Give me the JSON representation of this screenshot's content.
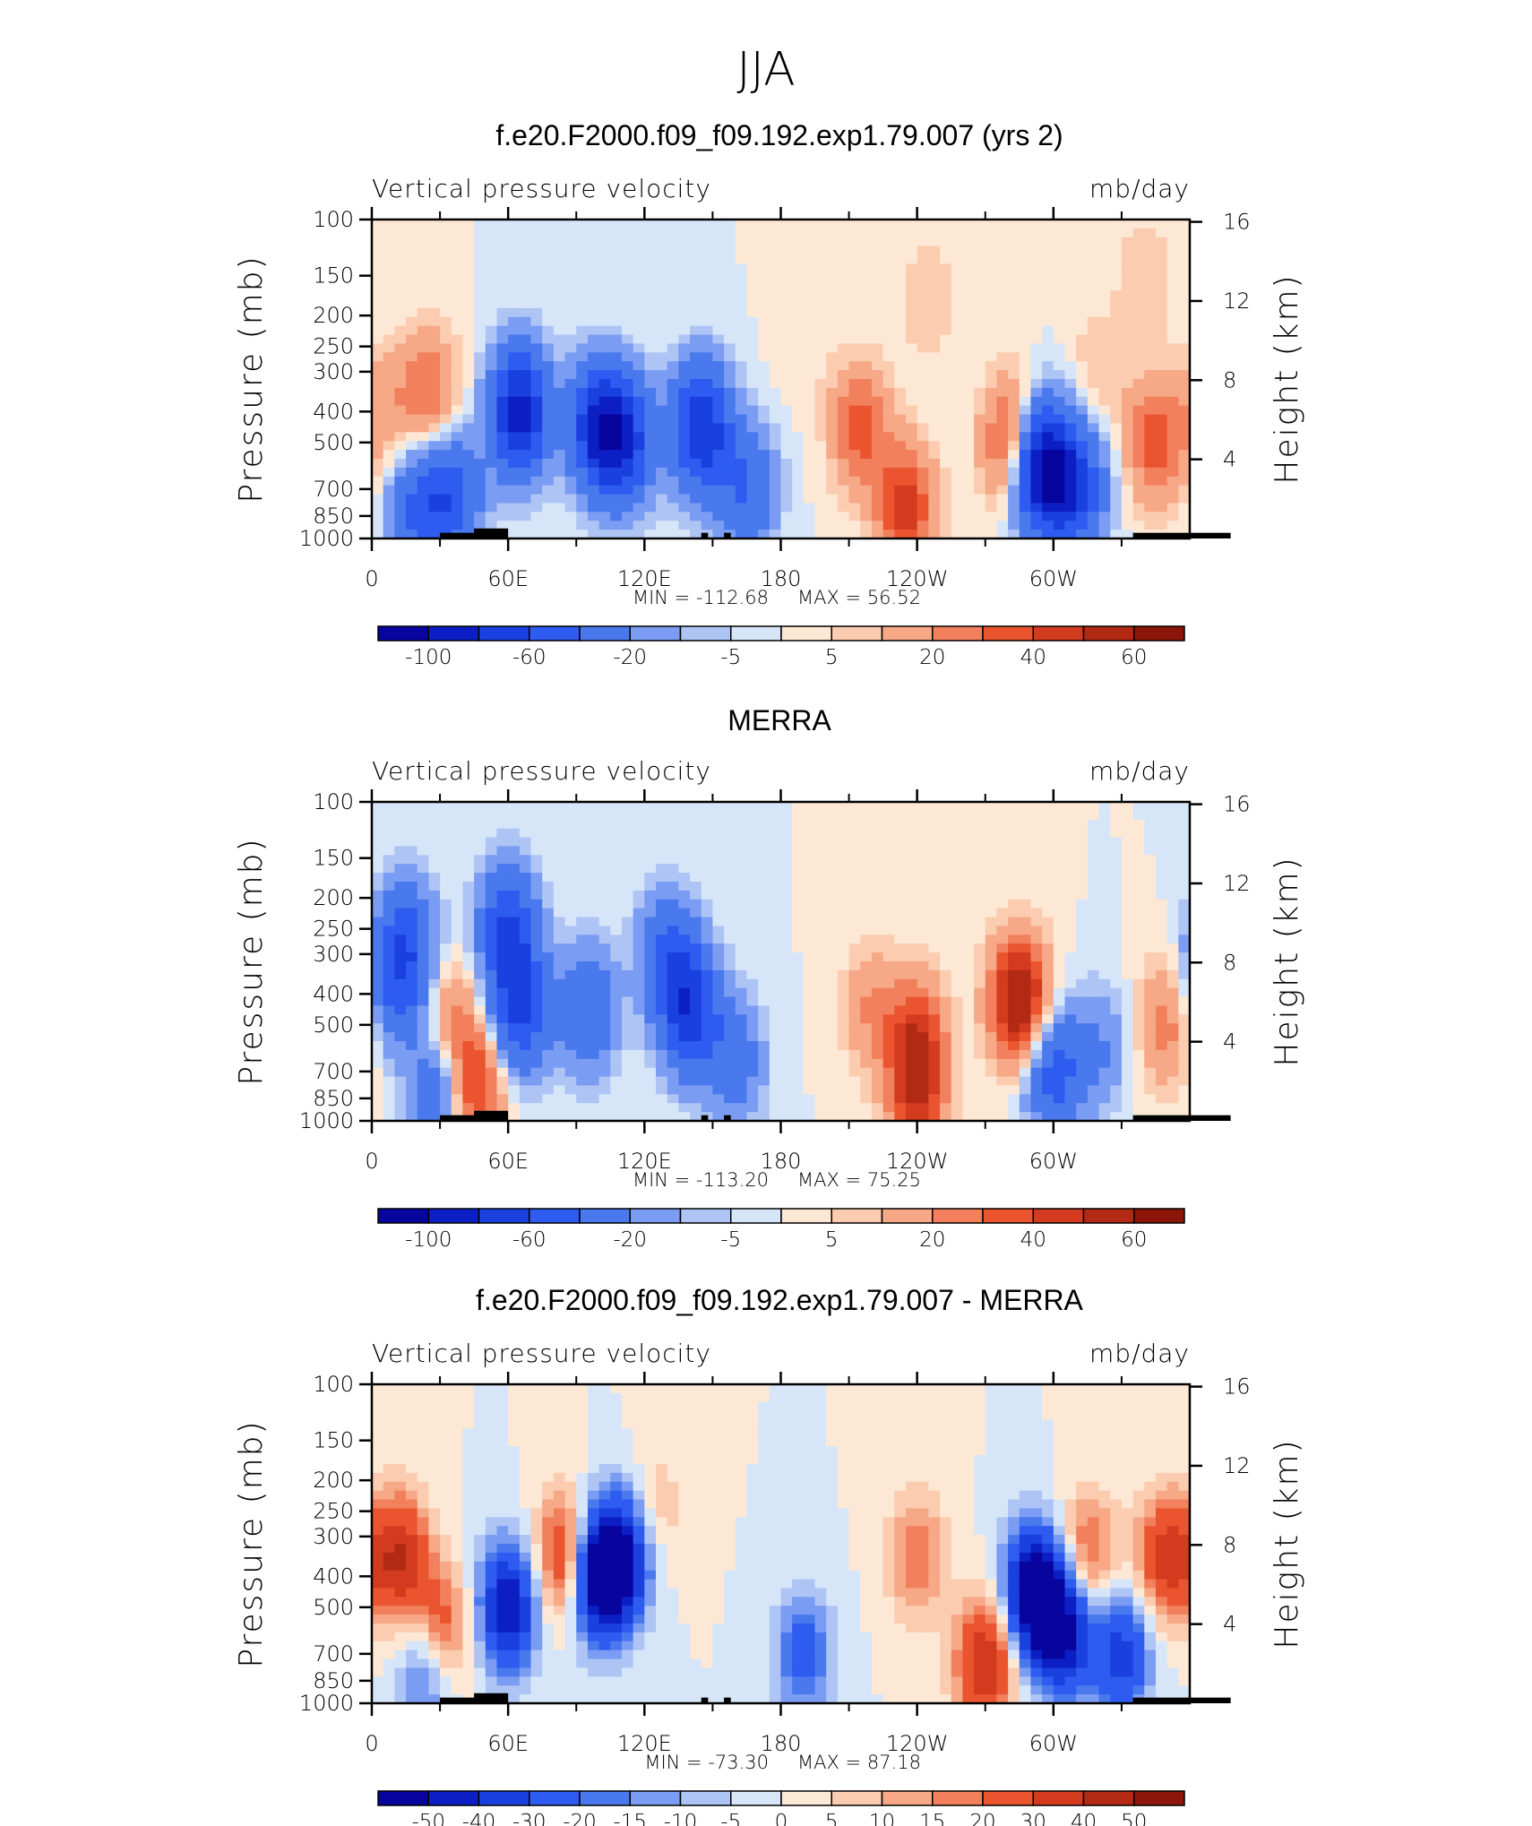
{
  "figure_title": "JJA",
  "chart_data": [
    {
      "type": "heatmap",
      "title": "f.e20.F2000.f09_f09.192.exp1.79.007 (yrs 2)",
      "variable": "Vertical pressure velocity",
      "units": "mb/day",
      "ylabel": "Pressure (mb)",
      "y2label": "Height (km)",
      "y_ticks": [
        "100",
        "150",
        "200",
        "250",
        "300",
        "400",
        "500",
        "700",
        "850",
        "1000"
      ],
      "y2_ticks": [
        "16",
        "12",
        "8",
        "4"
      ],
      "x_ticks": [
        "0",
        "60E",
        "120E",
        "180",
        "120W",
        "60W"
      ],
      "min_label": "MIN = -112.68",
      "max_label": "MAX = 56.52",
      "colorbar_labels": [
        "-100",
        "-60",
        "-20",
        "-5",
        "5",
        "20",
        "40",
        "60"
      ],
      "features": [
        {
          "lon": 25,
          "p": 350,
          "value": 30
        },
        {
          "lon": 5,
          "p": 400,
          "value": 15
        },
        {
          "lon": 20,
          "p": 800,
          "value": -40
        },
        {
          "lon": 35,
          "p": 750,
          "value": -50
        },
        {
          "lon": 65,
          "p": 400,
          "value": -90
        },
        {
          "lon": 100,
          "p": 450,
          "value": -80
        },
        {
          "lon": 112,
          "p": 500,
          "value": -60
        },
        {
          "lon": 145,
          "p": 450,
          "value": -80
        },
        {
          "lon": 165,
          "p": 700,
          "value": -40
        },
        {
          "lon": 190,
          "p": 230,
          "value": 5
        },
        {
          "lon": 215,
          "p": 450,
          "value": 35
        },
        {
          "lon": 235,
          "p": 800,
          "value": 45
        },
        {
          "lon": 245,
          "p": 180,
          "value": 10
        },
        {
          "lon": 282,
          "p": 500,
          "value": 45
        },
        {
          "lon": 295,
          "p": 600,
          "value": -110
        },
        {
          "lon": 310,
          "p": 700,
          "value": -60
        },
        {
          "lon": 320,
          "p": 300,
          "value": 10
        },
        {
          "lon": 345,
          "p": 500,
          "value": 35
        },
        {
          "lon": 340,
          "p": 150,
          "value": 10
        }
      ]
    },
    {
      "type": "heatmap",
      "title": "MERRA",
      "variable": "Vertical pressure velocity",
      "units": "mb/day",
      "ylabel": "Pressure (mb)",
      "y2label": "Height (km)",
      "y_ticks": [
        "100",
        "150",
        "200",
        "250",
        "300",
        "400",
        "500",
        "700",
        "850",
        "1000"
      ],
      "y2_ticks": [
        "16",
        "12",
        "8",
        "4"
      ],
      "x_ticks": [
        "0",
        "60E",
        "120E",
        "180",
        "120W",
        "60W"
      ],
      "min_label": "MIN = -113.20",
      "max_label": "MAX = 75.25",
      "colorbar_labels": [
        "-100",
        "-60",
        "-20",
        "-5",
        "5",
        "20",
        "40",
        "60"
      ],
      "features": [
        {
          "lon": 10,
          "p": 400,
          "value": -30
        },
        {
          "lon": 15,
          "p": 280,
          "value": -50
        },
        {
          "lon": 35,
          "p": 500,
          "value": 25
        },
        {
          "lon": 45,
          "p": 780,
          "value": 45
        },
        {
          "lon": 30,
          "p": 780,
          "value": -40
        },
        {
          "lon": 65,
          "p": 450,
          "value": -60
        },
        {
          "lon": 60,
          "p": 250,
          "value": -60
        },
        {
          "lon": 95,
          "p": 450,
          "value": -40
        },
        {
          "lon": 140,
          "p": 450,
          "value": -70
        },
        {
          "lon": 130,
          "p": 300,
          "value": -40
        },
        {
          "lon": 160,
          "p": 650,
          "value": -30
        },
        {
          "lon": 220,
          "p": 450,
          "value": 20
        },
        {
          "lon": 240,
          "p": 550,
          "value": 40
        },
        {
          "lon": 240,
          "p": 850,
          "value": 40
        },
        {
          "lon": 285,
          "p": 420,
          "value": 70
        },
        {
          "lon": 300,
          "p": 700,
          "value": -50
        },
        {
          "lon": 320,
          "p": 600,
          "value": -20
        },
        {
          "lon": 350,
          "p": 500,
          "value": 25
        }
      ]
    },
    {
      "type": "heatmap",
      "title": "f.e20.F2000.f09_f09.192.exp1.79.007 - MERRA",
      "variable": "Vertical pressure velocity",
      "units": "mb/day",
      "ylabel": "Pressure (mb)",
      "y2label": "Height (km)",
      "y_ticks": [
        "100",
        "150",
        "200",
        "250",
        "300",
        "400",
        "500",
        "700",
        "850",
        "1000"
      ],
      "y2_ticks": [
        "16",
        "12",
        "8",
        "4"
      ],
      "x_ticks": [
        "0",
        "60E",
        "120E",
        "180",
        "120W",
        "60W"
      ],
      "min_label": "MIN = -73.30",
      "max_label": "MAX = 87.18",
      "colorbar_labels": [
        "-50",
        "-40",
        "-30",
        "-20",
        "-15",
        "-10",
        "-5",
        "0",
        "5",
        "10",
        "15",
        "20",
        "30",
        "40",
        "50"
      ],
      "features": [
        {
          "lon": 12,
          "p": 350,
          "value": 40
        },
        {
          "lon": 30,
          "p": 600,
          "value": 35
        },
        {
          "lon": 25,
          "p": 750,
          "value": -30
        },
        {
          "lon": 60,
          "p": 500,
          "value": -50
        },
        {
          "lon": 85,
          "p": 350,
          "value": 35
        },
        {
          "lon": 100,
          "p": 400,
          "value": -60
        },
        {
          "lon": 110,
          "p": 350,
          "value": -45
        },
        {
          "lon": 125,
          "p": 250,
          "value": 10
        },
        {
          "lon": 190,
          "p": 700,
          "value": -25
        },
        {
          "lon": 240,
          "p": 350,
          "value": 20
        },
        {
          "lon": 270,
          "p": 750,
          "value": 40
        },
        {
          "lon": 292,
          "p": 450,
          "value": -70
        },
        {
          "lon": 305,
          "p": 600,
          "value": -50
        },
        {
          "lon": 330,
          "p": 700,
          "value": -35
        },
        {
          "lon": 315,
          "p": 350,
          "value": 25
        },
        {
          "lon": 350,
          "p": 350,
          "value": 35
        }
      ]
    }
  ],
  "colors": {
    "scale_full": [
      "#08049e",
      "#0c1fc4",
      "#1a40e0",
      "#2e5bf0",
      "#4a79ee",
      "#7a9cf2",
      "#adc4f5",
      "#d6e6f8",
      "#fde8d5",
      "#fbccb0",
      "#f6a887",
      "#f2805d",
      "#ea5530",
      "#d33b1f",
      "#b22a14",
      "#8c1609"
    ],
    "scale_main": [
      "#08049e",
      "#0c1fc4",
      "#1a40e0",
      "#2e5bf0",
      "#4a79ee",
      "#7a9cf2",
      "#adc4f5",
      "#d6e6f8",
      "#fde8d5",
      "#fbccb0",
      "#f6a887",
      "#f2805d",
      "#ea5530",
      "#d33b1f"
    ],
    "land": "#000000"
  }
}
